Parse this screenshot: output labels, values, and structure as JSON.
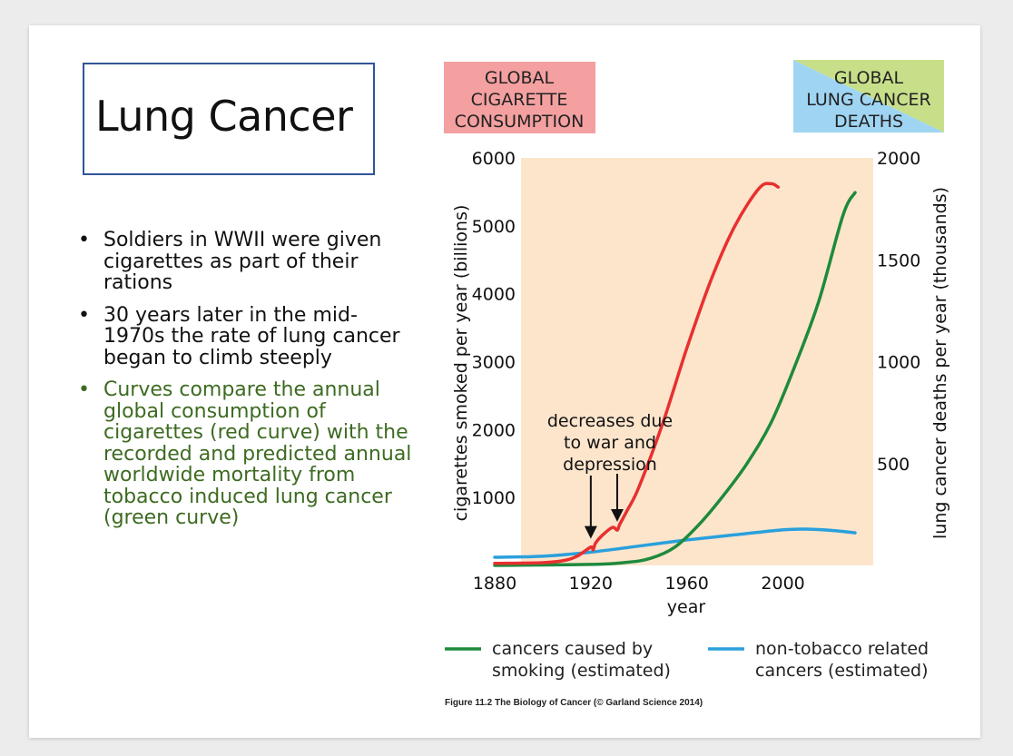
{
  "slide": {
    "title": "Lung Cancer",
    "bullets": [
      "Soldiers in WWII were given cigarettes as part of their rations",
      "30 years later in the mid-1970s the rate of lung cancer began to climb steeply",
      "Curves compare the annual global consumption of cigarettes (red curve) with the recorded and predicted annual worldwide mortality from tobacco induced lung cancer (green curve)"
    ],
    "bullet_colors": [
      "#111111",
      "#111111",
      "#3d6b21"
    ]
  },
  "chart_data": {
    "type": "line",
    "header_left": [
      "GLOBAL",
      "CIGARETTE",
      "CONSUMPTION"
    ],
    "header_right": [
      "GLOBAL",
      "LUNG CANCER",
      "DEATHS"
    ],
    "xlabel": "year",
    "ylabel_left": "cigarettes smoked per year (billions)",
    "ylabel_right": "lung cancer deaths per year (thousands)",
    "xlim": [
      1880,
      2035
    ],
    "ylim_left": [
      0,
      6000
    ],
    "ylim_right": [
      0,
      2000
    ],
    "x_ticks": [
      1880,
      1920,
      1960,
      2000
    ],
    "y_ticks_left": [
      1000,
      2000,
      3000,
      4000,
      5000,
      6000
    ],
    "y_ticks_right": [
      500,
      1000,
      1500,
      2000
    ],
    "grid": false,
    "background_color": "#fde5cc",
    "series": [
      {
        "name": "global cigarette consumption",
        "axis": "left",
        "color": "#e8302f",
        "x": [
          1880,
          1900,
          1910,
          1915,
          1920,
          1921,
          1922,
          1925,
          1929,
          1931,
          1932,
          1935,
          1940,
          1950,
          1960,
          1970,
          1980,
          1990,
          1995,
          1998
        ],
        "y": [
          30,
          40,
          80,
          150,
          270,
          230,
          330,
          450,
          560,
          520,
          600,
          800,
          1150,
          2100,
          3200,
          4200,
          5000,
          5550,
          5620,
          5570
        ]
      },
      {
        "name": "cancers caused by smoking (estimated)",
        "axis": "right",
        "color": "#1e8a3c",
        "x": [
          1880,
          1920,
          1935,
          1945,
          1955,
          1965,
          1975,
          1985,
          1995,
          2005,
          2015,
          2025,
          2030
        ],
        "y": [
          0,
          5,
          15,
          35,
          90,
          200,
          340,
          500,
          700,
          980,
          1300,
          1720,
          1830
        ]
      },
      {
        "name": "non-tobacco related cancers (estimated)",
        "axis": "right",
        "color": "#2aa0dc",
        "x": [
          1880,
          1900,
          1920,
          1940,
          1960,
          1980,
          2000,
          2010,
          2020,
          2030
        ],
        "y": [
          40,
          45,
          65,
          95,
          125,
          150,
          175,
          178,
          172,
          160
        ]
      }
    ],
    "annotation": {
      "lines": [
        "decreases due",
        "to war and",
        "depression"
      ],
      "arrows_at_years": [
        1920,
        1931
      ]
    },
    "legend": {
      "placement": "bottom",
      "items": [
        {
          "lines": [
            "cancers caused by",
            "smoking (estimated)"
          ],
          "color": "#1e8a3c"
        },
        {
          "lines": [
            "non-tobacco related",
            "cancers (estimated)"
          ],
          "color": "#2aa0dc"
        }
      ]
    },
    "caption": "Figure 11.2 The Biology of Cancer (© Garland Science 2014)"
  }
}
